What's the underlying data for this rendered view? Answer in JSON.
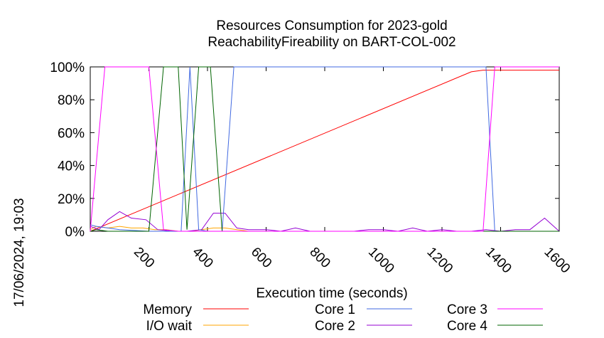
{
  "chart_data": {
    "type": "line",
    "title_line1": "Resources Consumption for 2023-gold",
    "title_line2": "ReachabilityFireability on BART-COL-002",
    "xlabel": "Execution time (seconds)",
    "side_label": "17/06/2024, 19:03",
    "xlim": [
      0,
      1600
    ],
    "ylim": [
      0,
      100
    ],
    "xticks": [
      200,
      400,
      600,
      800,
      1000,
      1200,
      1400,
      1600
    ],
    "yticks": [
      0,
      20,
      40,
      60,
      80,
      100
    ],
    "yunit": "%",
    "series": [
      {
        "name": "Memory",
        "color": "#ff0000",
        "x": [
          0,
          1300,
          1340,
          1600
        ],
        "y": [
          0,
          97,
          98,
          98
        ]
      },
      {
        "name": "I/O wait",
        "color": "#ffa500",
        "x": [
          0,
          20,
          60,
          100,
          140,
          180,
          220,
          260,
          300,
          340,
          380,
          420,
          460,
          500,
          540,
          600,
          700,
          800,
          1600
        ],
        "y": [
          1,
          3,
          2,
          3,
          2,
          2,
          1,
          1,
          0,
          0,
          1,
          2,
          2,
          1,
          0,
          0,
          0,
          0,
          0
        ]
      },
      {
        "name": "Core 1",
        "color": "#4169e1",
        "x": [
          0,
          20,
          60,
          100,
          200,
          250,
          290,
          310,
          340,
          370,
          400,
          430,
          450,
          490,
          1000,
          1350,
          1380,
          1400,
          1600
        ],
        "y": [
          4,
          3,
          2,
          1,
          0,
          0,
          0,
          0,
          100,
          1,
          0,
          0,
          0,
          100,
          100,
          100,
          0,
          0,
          0
        ]
      },
      {
        "name": "Core 2",
        "color": "#9400d3",
        "x": [
          0,
          30,
          60,
          100,
          140,
          190,
          230,
          280,
          330,
          380,
          420,
          460,
          500,
          540,
          600,
          650,
          700,
          750,
          800,
          850,
          900,
          950,
          1000,
          1050,
          1100,
          1150,
          1200,
          1250,
          1300,
          1350,
          1400,
          1450,
          1500,
          1550,
          1600
        ],
        "y": [
          3,
          1,
          7,
          12,
          8,
          7,
          1,
          0,
          0,
          1,
          11,
          11,
          2,
          1,
          1,
          0,
          2,
          0,
          0,
          0,
          0,
          1,
          1,
          0,
          2,
          0,
          1,
          0,
          0,
          1,
          0,
          1,
          1,
          8,
          0
        ]
      },
      {
        "name": "Core 3",
        "color": "#ff00ff",
        "x": [
          0,
          50,
          200,
          250,
          300,
          350,
          1340,
          1380,
          1600
        ],
        "y": [
          0,
          100,
          100,
          1,
          0,
          0,
          0,
          100,
          100
        ]
      },
      {
        "name": "Core 4",
        "color": "#006400",
        "x": [
          0,
          20,
          60,
          100,
          200,
          250,
          300,
          330,
          370,
          410,
          450,
          490,
          530,
          1400,
          1600
        ],
        "y": [
          0,
          1,
          0,
          0,
          0,
          100,
          100,
          1,
          100,
          100,
          0,
          0,
          0,
          0,
          0
        ]
      }
    ],
    "legend": [
      {
        "label": "Memory",
        "color": "#ff0000"
      },
      {
        "label": "I/O wait",
        "color": "#ffa500"
      },
      {
        "label": "Core 1",
        "color": "#4169e1"
      },
      {
        "label": "Core 2",
        "color": "#9400d3"
      },
      {
        "label": "Core 3",
        "color": "#ff00ff"
      },
      {
        "label": "Core 4",
        "color": "#006400"
      }
    ]
  }
}
